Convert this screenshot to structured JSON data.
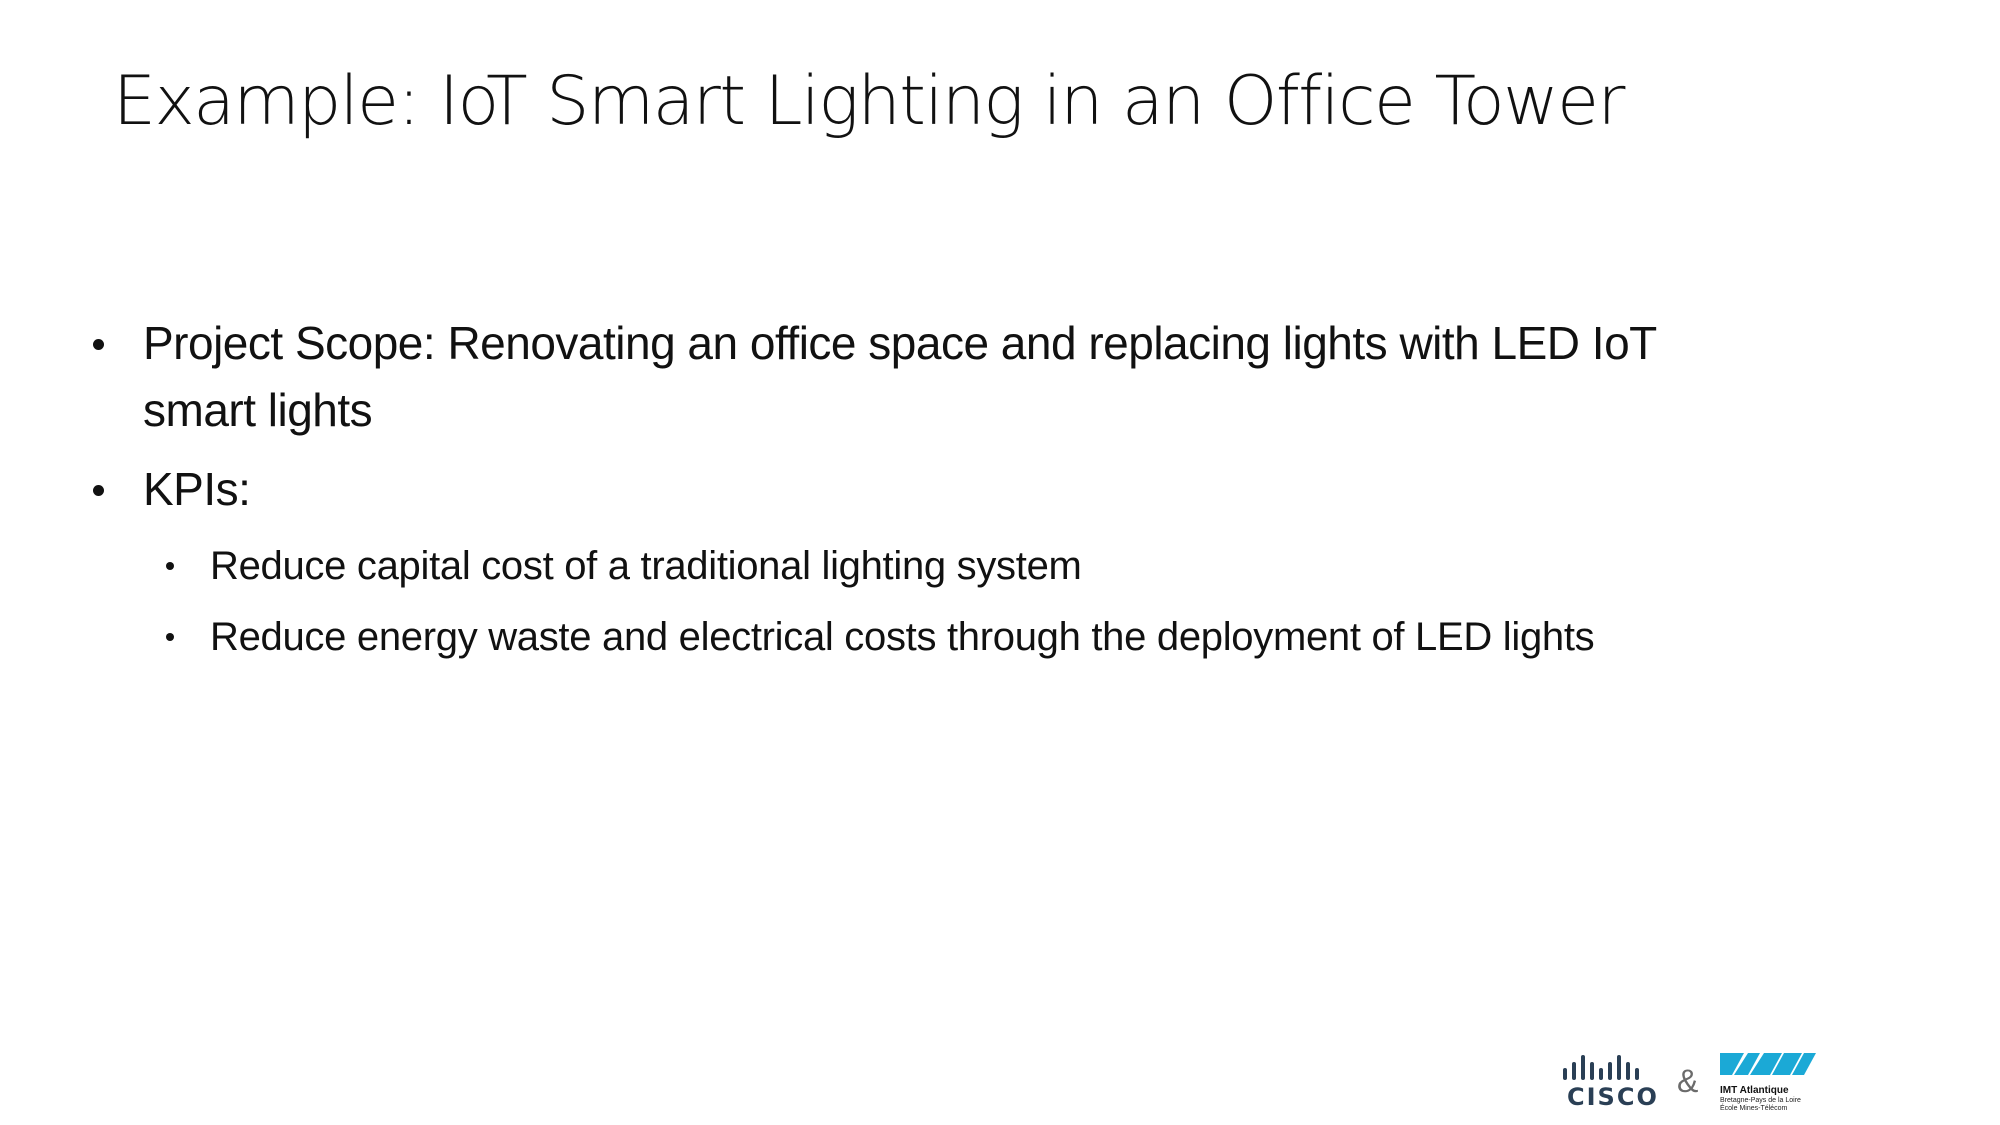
{
  "slide": {
    "title": "Example: IoT Smart Lighting in an Office Tower",
    "bullets": [
      {
        "text": "Project Scope: Renovating an office space and replacing lights with LED IoT smart lights",
        "children": []
      },
      {
        "text": "KPIs:",
        "children": [
          "Reduce capital cost of a traditional lighting system",
          "Reduce energy waste and electrical costs through the deployment of LED lights"
        ]
      }
    ]
  },
  "footer": {
    "cisco_wordmark": "CISCO",
    "ampersand": "&",
    "imt_name": "IMT Atlantique",
    "imt_subtitle_1": "Bretagne-Pays de la Loire",
    "imt_subtitle_2": "École Mines-Télécom",
    "cisco_color": "#2a3f55",
    "imt_color": "#1ba9d6",
    "icons": [
      "cisco-logo-icon",
      "imt-atlantique-logo-icon"
    ]
  }
}
